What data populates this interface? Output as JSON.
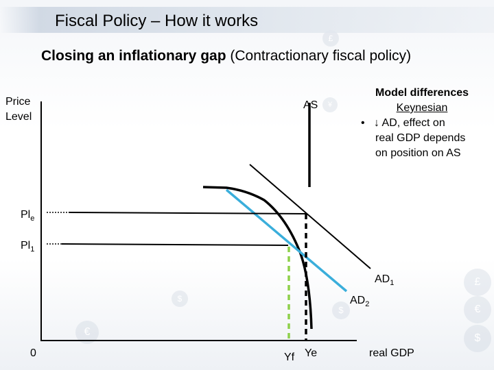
{
  "header": {
    "title": "Fiscal Policy – How it works"
  },
  "subtitle": {
    "bold_part": "Closing an inflationary gap",
    "normal_part": "(Contractionary fiscal policy)"
  },
  "axes": {
    "y_label_line1": "Price",
    "y_label_line2": "Level",
    "x_label": "real GDP",
    "origin": "0"
  },
  "curves": {
    "as": "AS",
    "ad1_main": "AD",
    "ad1_sub": "1",
    "ad2_main": "AD",
    "ad2_sub": "2"
  },
  "levels": {
    "ple_main": "Pl",
    "ple_sub": "e",
    "pl1_main": "Pl",
    "pl1_sub": "1"
  },
  "outputs": {
    "yf": "Yf",
    "ye": "Ye"
  },
  "model_box": {
    "heading": "Model differences",
    "school": "Keynesian",
    "bullet": "•",
    "line1": "↓ AD, effect on",
    "line2": "real GDP depends",
    "line3": "on position on AS"
  },
  "decor": {
    "currency_symbols": [
      "£",
      "€",
      "$",
      "¥"
    ]
  },
  "colors": {
    "ad2_line": "#3aaedb",
    "yf_line": "#8ed04a",
    "ink": "#000000"
  }
}
